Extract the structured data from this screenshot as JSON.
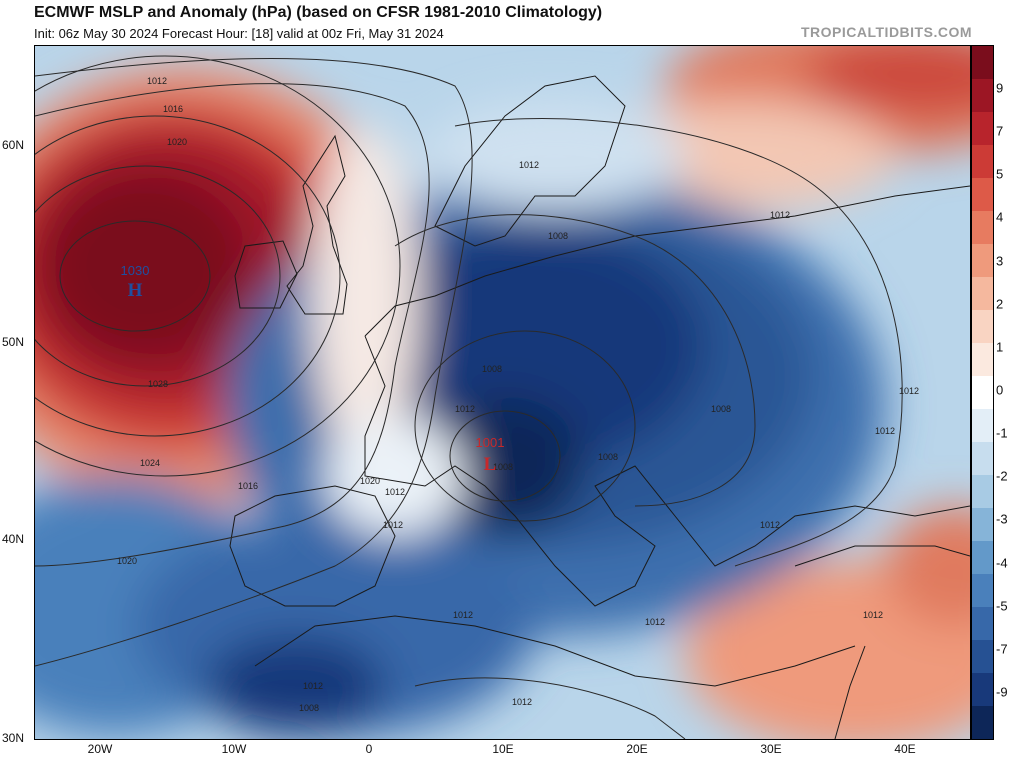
{
  "header": {
    "title": "ECMWF MSLP and Anomaly (hPa) (based on CFSR 1981-2010 Climatology)",
    "subtitle": "Init: 06z May 30 2024   Forecast Hour: [18]   valid at 00z Fri, May 31 2024",
    "brand": "TROPICALTIDBITS.COM"
  },
  "axes": {
    "lat_labels": [
      "60N",
      "50N",
      "40N",
      "30N"
    ],
    "lon_labels": [
      "20W",
      "10W",
      "0",
      "10E",
      "20E",
      "30E",
      "40E"
    ]
  },
  "colorbar": {
    "labels": [
      "9",
      "7",
      "5",
      "4",
      "3",
      "2",
      "1",
      "0",
      "-1",
      "-2",
      "-3",
      "-4",
      "-5",
      "-7",
      "-9"
    ],
    "colors": [
      "#7a0d1c",
      "#9c1624",
      "#b8242c",
      "#cc3b36",
      "#dd5a48",
      "#e77b60",
      "#ef9a7c",
      "#f5b89e",
      "#f9d4c2",
      "#fbe9df",
      "#ffffff",
      "#e3eef7",
      "#c7ddee",
      "#a8cbe4",
      "#86b4d8",
      "#6399c9",
      "#4a80bb",
      "#3768a9",
      "#265193",
      "#18397a",
      "#0d2658"
    ]
  },
  "map": {
    "pressure_centers": [
      {
        "type": "H",
        "value": "1030",
        "color": "#1f4fa0"
      },
      {
        "type": "L",
        "value": "1001",
        "color": "#c8282a"
      }
    ],
    "isobar_labels": [
      "1012",
      "1016",
      "1020",
      "1024",
      "1028",
      "1020",
      "1016",
      "1020",
      "1012",
      "1012",
      "1008",
      "1012",
      "1008",
      "1008",
      "1012",
      "1008",
      "1008",
      "1012",
      "1016",
      "1012",
      "1012",
      "1012",
      "1012",
      "1012",
      "1008",
      "1012",
      "1012",
      "1012"
    ],
    "colors": {
      "land_line": "#1a1a1a",
      "isobar": "#2a2a2a"
    }
  }
}
